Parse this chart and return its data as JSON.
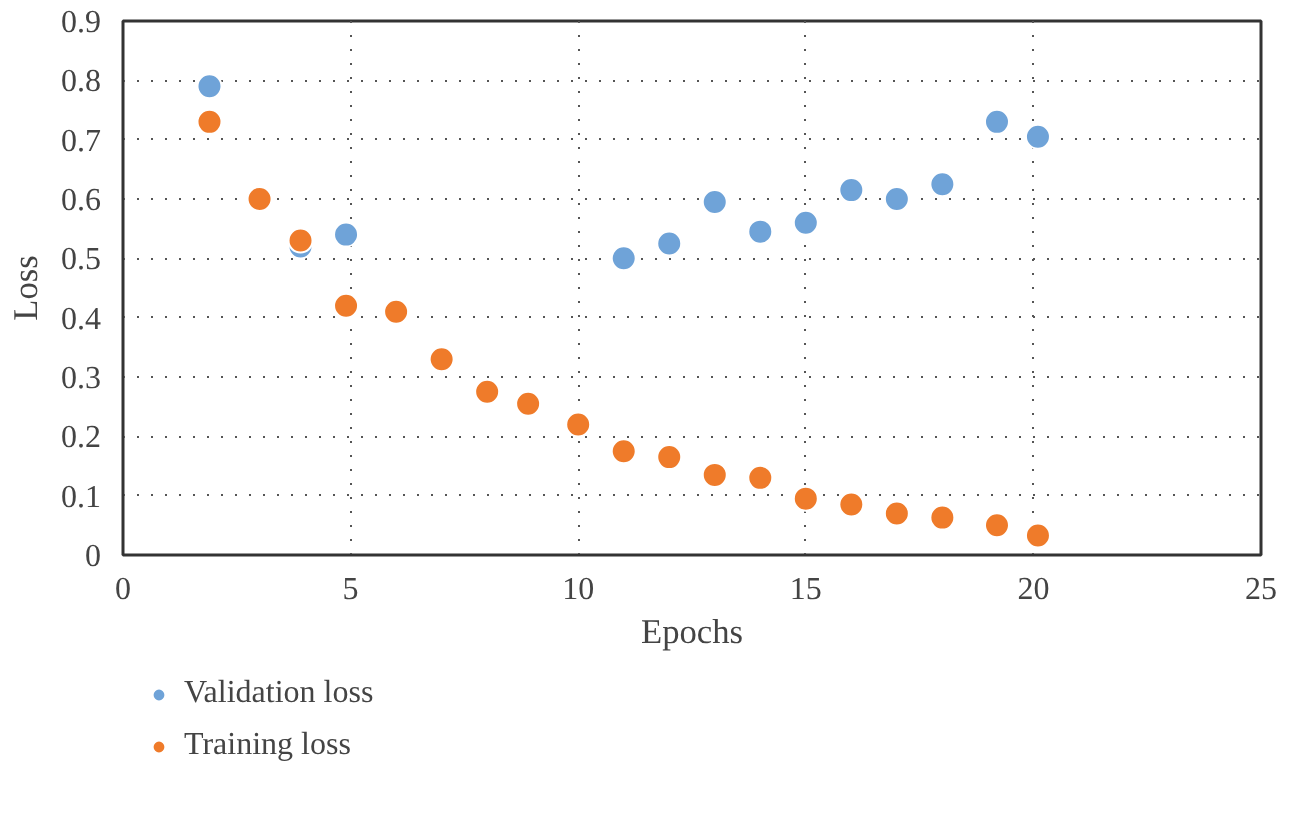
{
  "chart_data": {
    "type": "scatter",
    "xlabel": "Epochs",
    "ylabel": "Loss",
    "xlim": [
      0,
      25
    ],
    "xticks": [
      0,
      5,
      10,
      15,
      20,
      25
    ],
    "ylim": [
      0,
      0.9
    ],
    "yticks": [
      0,
      0.1,
      0.2,
      0.3,
      0.4,
      0.5,
      0.6,
      0.7,
      0.8,
      0.9
    ],
    "grid": true,
    "legend": "bottom left",
    "marker": "circle",
    "series": [
      {
        "name": "Validation loss",
        "color": "#6fa3d8",
        "x": [
          1.9,
          3.9,
          4.9,
          11,
          12,
          13,
          14,
          15,
          16,
          17,
          18,
          19.2,
          20.1
        ],
        "values": [
          0.79,
          0.52,
          0.54,
          0.5,
          0.525,
          0.595,
          0.545,
          0.56,
          0.615,
          0.6,
          0.625,
          0.73,
          0.705
        ]
      },
      {
        "name": "Training loss",
        "color": "#ef7b2a",
        "x": [
          1.9,
          3,
          3.9,
          4.9,
          6,
          7,
          8,
          8.9,
          10,
          11,
          12,
          13,
          14,
          15,
          16,
          17,
          18,
          19.2,
          20.1
        ],
        "values": [
          0.73,
          0.6,
          0.53,
          0.42,
          0.41,
          0.33,
          0.275,
          0.255,
          0.22,
          0.175,
          0.165,
          0.135,
          0.13,
          0.095,
          0.085,
          0.07,
          0.063,
          0.05,
          0.033
        ]
      }
    ]
  }
}
